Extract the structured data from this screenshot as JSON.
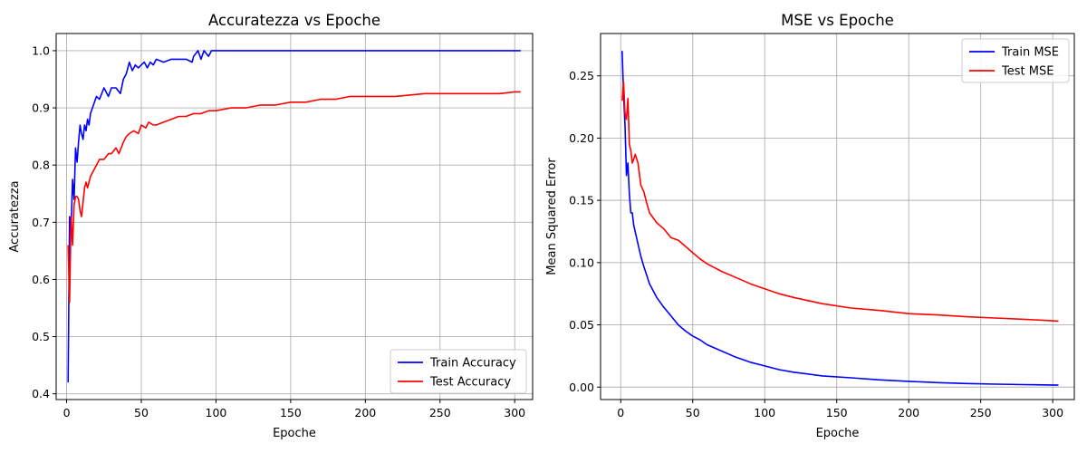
{
  "chart_data": [
    {
      "type": "line",
      "title": "Accuratezza vs Epoche",
      "xlabel": "Epoche",
      "ylabel": "Accuratezza",
      "xlim": [
        -7,
        312
      ],
      "ylim": [
        0.39,
        1.03
      ],
      "xticks": [
        0,
        50,
        100,
        150,
        200,
        250,
        300
      ],
      "xtick_labels": [
        "0",
        "50",
        "100",
        "150",
        "200",
        "250",
        "300"
      ],
      "yticks": [
        0.4,
        0.5,
        0.6,
        0.7,
        0.8,
        0.9,
        1.0
      ],
      "ytick_labels": [
        "0.4",
        "0.5",
        "0.6",
        "0.7",
        "0.8",
        "0.9",
        "1.0"
      ],
      "grid": true,
      "legend_position": "lower-right",
      "series": [
        {
          "name": "Train Accuracy",
          "color": "#0000ff",
          "x": [
            1,
            2,
            3,
            4,
            5,
            6,
            7,
            8,
            9,
            10,
            11,
            12,
            13,
            14,
            15,
            16,
            18,
            20,
            22,
            25,
            28,
            30,
            33,
            36,
            38,
            40,
            42,
            44,
            46,
            48,
            50,
            52,
            54,
            56,
            58,
            60,
            65,
            70,
            75,
            80,
            84,
            85,
            88,
            90,
            92,
            95,
            97,
            100,
            150,
            200,
            250,
            304
          ],
          "y": [
            0.42,
            0.71,
            0.69,
            0.775,
            0.74,
            0.83,
            0.805,
            0.84,
            0.87,
            0.855,
            0.845,
            0.87,
            0.86,
            0.88,
            0.87,
            0.89,
            0.905,
            0.92,
            0.915,
            0.935,
            0.92,
            0.935,
            0.935,
            0.925,
            0.95,
            0.96,
            0.98,
            0.965,
            0.975,
            0.97,
            0.975,
            0.98,
            0.97,
            0.98,
            0.975,
            0.985,
            0.98,
            0.985,
            0.985,
            0.985,
            0.98,
            0.99,
            1.0,
            0.985,
            1.0,
            0.99,
            1.0,
            1.0,
            1.0,
            1.0,
            1.0,
            1.0
          ]
        },
        {
          "name": "Test Accuracy",
          "color": "#ff0000",
          "x": [
            1,
            2,
            3,
            4,
            5,
            6,
            7,
            8,
            9,
            10,
            11,
            12,
            13,
            14,
            16,
            18,
            20,
            22,
            25,
            28,
            30,
            33,
            35,
            38,
            40,
            42,
            45,
            48,
            50,
            53,
            55,
            58,
            60,
            65,
            70,
            75,
            80,
            85,
            90,
            95,
            100,
            110,
            120,
            130,
            140,
            150,
            160,
            170,
            180,
            190,
            200,
            220,
            240,
            260,
            280,
            290,
            300,
            304
          ],
          "y": [
            0.66,
            0.56,
            0.71,
            0.66,
            0.73,
            0.745,
            0.745,
            0.74,
            0.72,
            0.71,
            0.735,
            0.76,
            0.77,
            0.76,
            0.78,
            0.79,
            0.8,
            0.81,
            0.81,
            0.82,
            0.82,
            0.83,
            0.82,
            0.84,
            0.85,
            0.855,
            0.86,
            0.855,
            0.87,
            0.865,
            0.875,
            0.87,
            0.87,
            0.875,
            0.88,
            0.885,
            0.885,
            0.89,
            0.89,
            0.895,
            0.895,
            0.9,
            0.9,
            0.905,
            0.905,
            0.91,
            0.91,
            0.915,
            0.915,
            0.92,
            0.92,
            0.92,
            0.925,
            0.925,
            0.925,
            0.925,
            0.928,
            0.928
          ]
        }
      ]
    },
    {
      "type": "line",
      "title": "MSE vs Epoche",
      "xlabel": "Epoche",
      "ylabel": "Mean Squared Error",
      "xlim": [
        -14,
        315
      ],
      "ylim": [
        -0.01,
        0.284
      ],
      "xticks": [
        0,
        50,
        100,
        150,
        200,
        250,
        300
      ],
      "xtick_labels": [
        "0",
        "50",
        "100",
        "150",
        "200",
        "250",
        "300"
      ],
      "yticks": [
        0.0,
        0.05,
        0.1,
        0.15,
        0.2,
        0.25
      ],
      "ytick_labels": [
        "0.00",
        "0.05",
        "0.10",
        "0.15",
        "0.20",
        "0.25"
      ],
      "grid": true,
      "legend_position": "upper-right",
      "series": [
        {
          "name": "Train MSE",
          "color": "#0000ff",
          "x": [
            1,
            2,
            3,
            4,
            5,
            6,
            7,
            8,
            9,
            10,
            12,
            14,
            16,
            18,
            20,
            25,
            30,
            35,
            40,
            45,
            50,
            55,
            60,
            70,
            80,
            90,
            100,
            110,
            120,
            140,
            160,
            180,
            200,
            220,
            240,
            260,
            280,
            304
          ],
          "y": [
            0.27,
            0.235,
            0.21,
            0.17,
            0.18,
            0.155,
            0.14,
            0.14,
            0.13,
            0.125,
            0.115,
            0.105,
            0.097,
            0.09,
            0.083,
            0.072,
            0.064,
            0.057,
            0.05,
            0.045,
            0.041,
            0.038,
            0.034,
            0.029,
            0.024,
            0.02,
            0.017,
            0.014,
            0.012,
            0.009,
            0.0075,
            0.0058,
            0.0046,
            0.0036,
            0.0029,
            0.0024,
            0.002,
            0.0016
          ]
        },
        {
          "name": "Test MSE",
          "color": "#ff0000",
          "x": [
            1,
            2,
            3,
            4,
            5,
            6,
            7,
            8,
            9,
            10,
            12,
            14,
            16,
            18,
            20,
            25,
            30,
            35,
            40,
            45,
            50,
            55,
            60,
            70,
            80,
            90,
            100,
            110,
            120,
            140,
            160,
            180,
            200,
            220,
            240,
            260,
            280,
            304
          ],
          "y": [
            0.23,
            0.245,
            0.22,
            0.215,
            0.232,
            0.195,
            0.19,
            0.18,
            0.183,
            0.187,
            0.18,
            0.162,
            0.157,
            0.148,
            0.14,
            0.132,
            0.127,
            0.12,
            0.118,
            0.113,
            0.108,
            0.103,
            0.099,
            0.093,
            0.088,
            0.083,
            0.079,
            0.075,
            0.072,
            0.067,
            0.0635,
            0.0615,
            0.059,
            0.058,
            0.0565,
            0.0555,
            0.0545,
            0.053
          ]
        }
      ]
    }
  ]
}
